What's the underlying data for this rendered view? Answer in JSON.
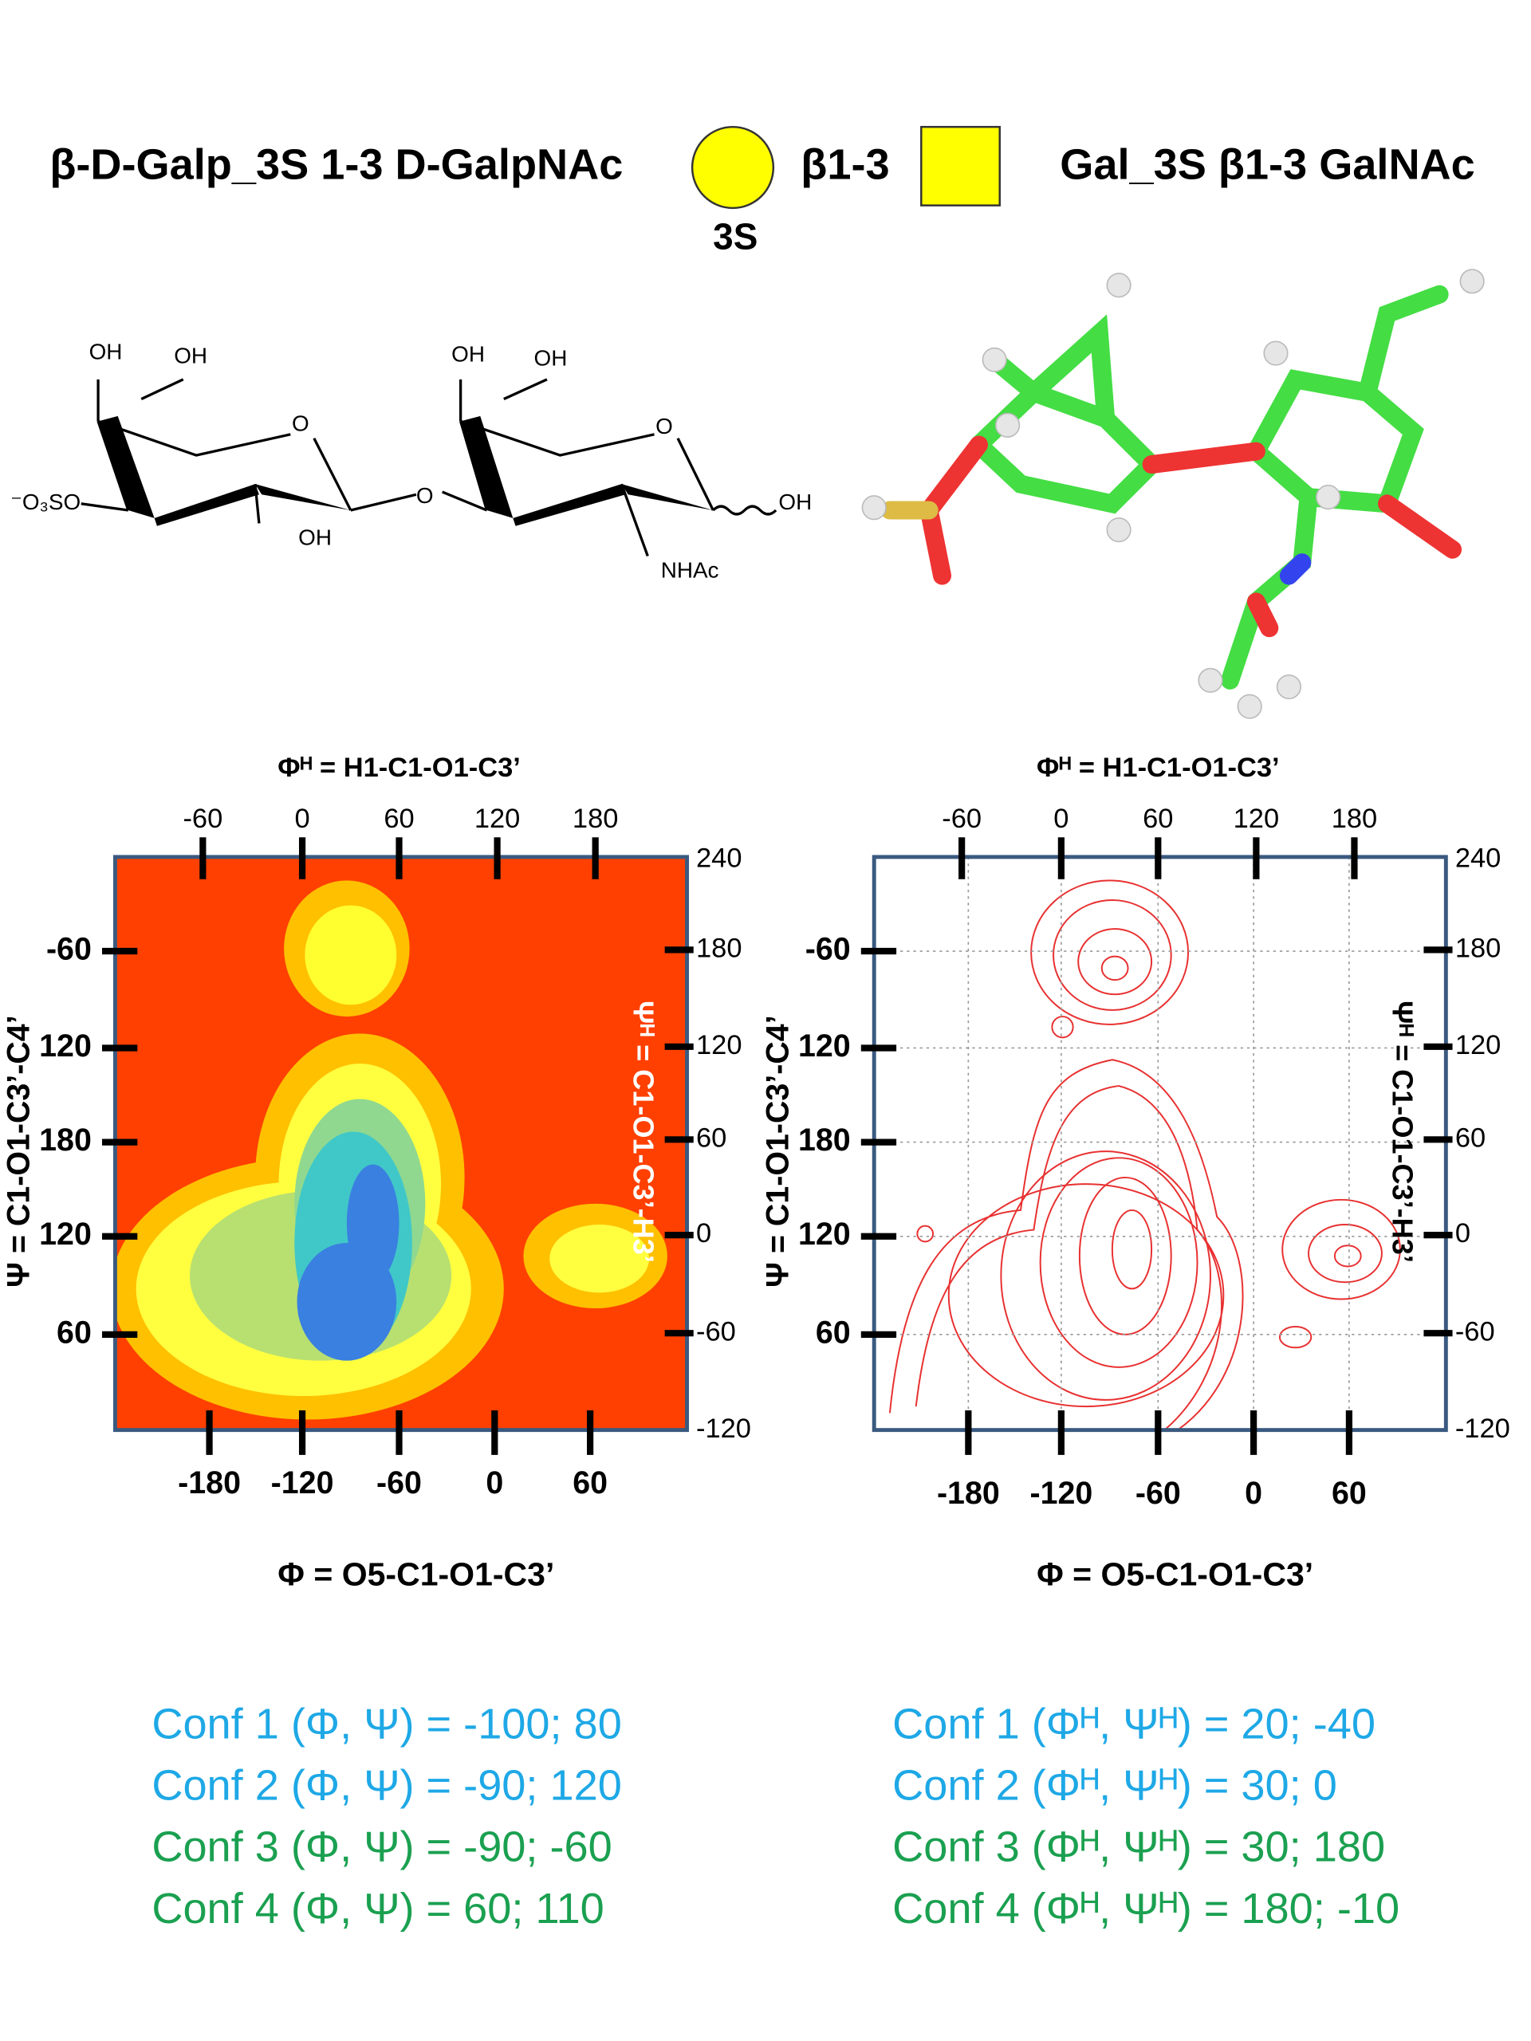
{
  "header": {
    "left_title": "β-D-Galp_3S 1-3 D-GalpNAc",
    "linkage": "β1-3",
    "sulfate": "3S",
    "right_title": "Gal_3S β1-3 GalNAc"
  },
  "structure": {
    "labels": [
      "OH",
      "OH",
      "O",
      "⁻O₃SO",
      "OH",
      "O",
      "OH",
      "OH",
      "O",
      "NHAc",
      "OH"
    ]
  },
  "plots": [
    {
      "top_axis": "Φᴴ = H1-C1-O1-C3’",
      "top_ticks": [
        -60,
        0,
        60,
        120,
        180
      ],
      "right_ticks": [
        240,
        180,
        120,
        60,
        0,
        -60,
        -120
      ],
      "left_ticks": [
        -60,
        120,
        180,
        120,
        60
      ],
      "bottom_ticks": [
        -180,
        -120,
        -60,
        0,
        60
      ],
      "x_axis": "Φ = O5-C1-O1-C3’",
      "y_axis": "Ψ = C1-O1-C3’-C4’",
      "y2_axis": "Ψᴴ = C1-O1-C3’-H3’"
    },
    {
      "top_axis": "Φᴴ = H1-C1-O1-C3’",
      "top_ticks": [
        -60,
        0,
        60,
        120,
        180
      ],
      "right_ticks": [
        240,
        180,
        120,
        60,
        0,
        -60,
        -120
      ],
      "left_ticks": [
        -60,
        120,
        180,
        120,
        60
      ],
      "bottom_ticks": [
        -180,
        -120,
        -60,
        0,
        60
      ],
      "x_axis": "Φ = O5-C1-O1-C3’",
      "y_axis": "Ψ = C1-O1-C3’-C4’",
      "y2_axis": "Ψᴴ = C1-O1-C3’-H3’"
    }
  ],
  "conformations": {
    "left": [
      "Conf 1 (Φ, Ψ) = -100;  80",
      "Conf 2 (Φ, Ψ) =   -90; 120",
      "Conf 3 (Φ, Ψ) =   -90; -60",
      "Conf 4 (Φ, Ψ) =    60; 110"
    ],
    "right": [
      "Conf 1 (Φᴴ, Ψᴴ) = 20; -40",
      "Conf 2 (Φᴴ, Ψᴴ) = 30;   0",
      "Conf 3 (Φᴴ, Ψᴴ) = 30; 180",
      "Conf 4 (Φᴴ, Ψᴴ) = 180; -10"
    ]
  }
}
